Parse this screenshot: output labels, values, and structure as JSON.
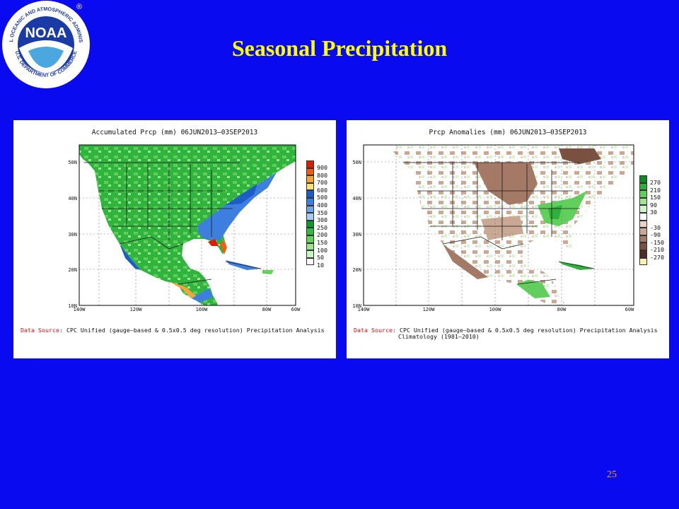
{
  "slide_title": "Seasonal Precipitation",
  "page_number": "25",
  "logo": {
    "text": "NOAA",
    "ring_top": "NATIONAL OCEANIC AND ATMOSPHERIC ADMINISTRATION",
    "ring_bottom": "U.S. DEPARTMENT OF COMMERCE",
    "registered": "®"
  },
  "colors": {
    "background": "#0a0af0",
    "title": "#ffff00",
    "page_number": "#e8a900"
  },
  "map_axes": {
    "lat_labels": [
      "50N",
      "40N",
      "30N",
      "20N",
      "10N"
    ],
    "lon_labels": [
      "140W",
      "120W",
      "100W",
      "80W",
      "60W"
    ]
  },
  "left_panel": {
    "title": "Accumulated Prcp (mm) 06JUN2013–03SEP2013",
    "source_label": "Data Source:",
    "source_text": "CPC Unified (gauge–based & 0.5x0.5 deg resolution) Precipitation Analysis",
    "legend": [
      {
        "label": "900",
        "color": "#d81e05"
      },
      {
        "label": "800",
        "color": "#f25c13"
      },
      {
        "label": "700",
        "color": "#f7a23a"
      },
      {
        "label": "600",
        "color": "#fde079"
      },
      {
        "label": "500",
        "color": "#1c5cc8"
      },
      {
        "label": "400",
        "color": "#3d7fe0"
      },
      {
        "label": "350",
        "color": "#6ea6ee"
      },
      {
        "label": "300",
        "color": "#a6cdf8"
      },
      {
        "label": "250",
        "color": "#0f9a2e"
      },
      {
        "label": "200",
        "color": "#34b93f"
      },
      {
        "label": "150",
        "color": "#63d35b"
      },
      {
        "label": "100",
        "color": "#98e68e"
      },
      {
        "label": "50",
        "color": "#c9f5c2"
      },
      {
        "label": "10",
        "color": "#ffffff"
      }
    ]
  },
  "right_panel": {
    "title": "Prcp Anomalies (mm) 06JUN2013–03SEP2013",
    "source_label": "Data Source:",
    "source_text": "CPC Unified (gauge–based & 0.5x0.5 deg resolution) Precipitation Analysis",
    "source_text2": "Climatology (1981–2010)",
    "legend": [
      {
        "label": "270",
        "color": "#0d8a25"
      },
      {
        "label": "210",
        "color": "#2fb03d"
      },
      {
        "label": "150",
        "color": "#60cf5c"
      },
      {
        "label": "90",
        "color": "#9de88f"
      },
      {
        "label": "30",
        "color": "#d3f6cb"
      },
      {
        "label": "",
        "color": "#ffffff"
      },
      {
        "label": "-30",
        "color": "#e7d3c5"
      },
      {
        "label": "-90",
        "color": "#c9a894"
      },
      {
        "label": "-150",
        "color": "#a47a66"
      },
      {
        "label": "-210",
        "color": "#7a5140"
      },
      {
        "label": "-270",
        "color": "#4d2f22"
      },
      {
        "label": "",
        "color": "#fff3b0"
      }
    ]
  }
}
